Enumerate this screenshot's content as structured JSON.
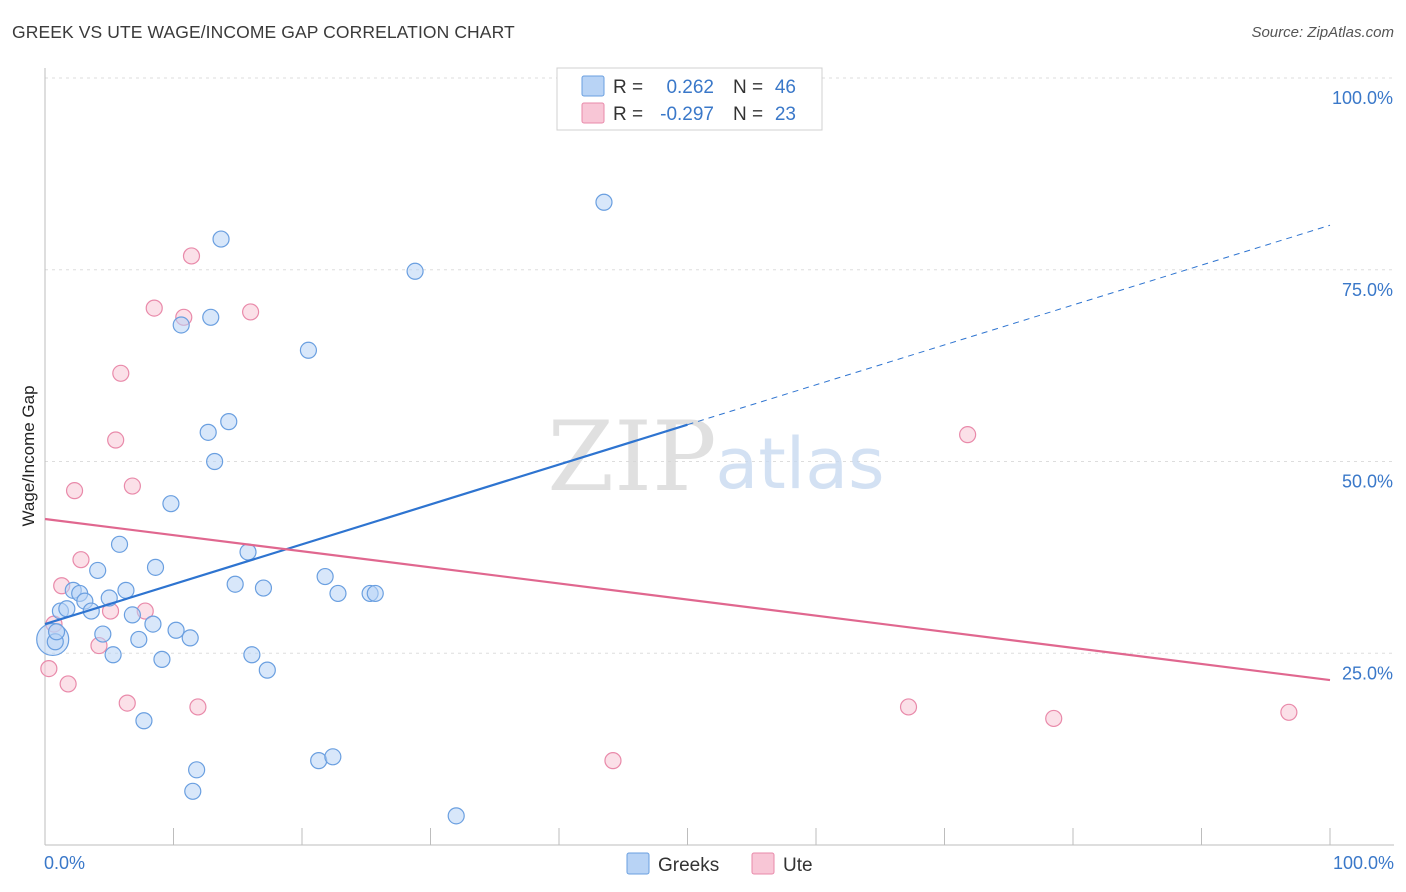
{
  "title": "GREEK VS UTE WAGE/INCOME GAP CORRELATION CHART",
  "source": "Source: ZipAtlas.com",
  "watermark": {
    "zip": "ZIP",
    "atlas": "atlas"
  },
  "colors": {
    "greeks_fill": "#b8d3f5",
    "greeks_stroke": "#6a9fe0",
    "greeks_line": "#2e74d0",
    "ute_fill": "#f8c6d6",
    "ute_stroke": "#e98aaa",
    "ute_line": "#e0678f",
    "grid": "#dddddd",
    "axis_text": "#3a78c9"
  },
  "stats_box": {
    "rows": [
      {
        "r_label": "R =",
        "r_value": "0.262",
        "n_label": "N =",
        "n_value": "46"
      },
      {
        "r_label": "R =",
        "r_value": "-0.297",
        "n_label": "N =",
        "n_value": "23"
      }
    ]
  },
  "legend": {
    "greeks": "Greeks",
    "ute": "Ute"
  },
  "chart_data": {
    "type": "scatter",
    "title": "GREEK VS UTE WAGE/INCOME GAP CORRELATION CHART",
    "xlabel": "",
    "ylabel": "Wage/Income Gap",
    "xlim": [
      0,
      100
    ],
    "ylim": [
      0,
      100
    ],
    "x_tick_labels": [
      "0.0%",
      "100.0%"
    ],
    "y_tick_labels": [
      {
        "value": 25,
        "label": "25.0%"
      },
      {
        "value": 50,
        "label": "50.0%"
      },
      {
        "value": 75,
        "label": "75.0%"
      },
      {
        "value": 100,
        "label": "100.0%"
      }
    ],
    "grid": true,
    "legend_position": "bottom",
    "series": [
      {
        "name": "Greeks",
        "r": 0.262,
        "n": 46,
        "trend": {
          "x0": 0,
          "y0": 28.8,
          "x1": 50,
          "y1": 54.8,
          "dashed_to_x": 100,
          "dashed_to_y": 80.8
        },
        "points": [
          [
            0.8,
            26.5
          ],
          [
            0.9,
            27.8
          ],
          [
            1.2,
            30.5
          ],
          [
            1.7,
            30.8
          ],
          [
            2.2,
            33.2
          ],
          [
            2.7,
            32.8
          ],
          [
            3.1,
            31.8
          ],
          [
            3.6,
            30.5
          ],
          [
            4.1,
            35.8
          ],
          [
            4.5,
            27.5
          ],
          [
            5.0,
            32.2
          ],
          [
            5.3,
            24.8
          ],
          [
            5.8,
            39.2
          ],
          [
            6.3,
            33.2
          ],
          [
            6.8,
            30.0
          ],
          [
            7.3,
            26.8
          ],
          [
            7.7,
            16.2
          ],
          [
            8.4,
            28.8
          ],
          [
            8.6,
            36.2
          ],
          [
            9.1,
            24.2
          ],
          [
            9.8,
            44.5
          ],
          [
            10.2,
            28.0
          ],
          [
            10.6,
            67.8
          ],
          [
            11.3,
            27.0
          ],
          [
            11.8,
            9.8
          ],
          [
            11.5,
            7.0
          ],
          [
            12.7,
            53.8
          ],
          [
            12.9,
            68.8
          ],
          [
            13.2,
            50.0
          ],
          [
            13.7,
            79.0
          ],
          [
            14.3,
            55.2
          ],
          [
            14.8,
            34.0
          ],
          [
            15.8,
            38.2
          ],
          [
            16.1,
            24.8
          ],
          [
            17.0,
            33.5
          ],
          [
            17.3,
            22.8
          ],
          [
            20.5,
            64.5
          ],
          [
            21.3,
            11.0
          ],
          [
            21.8,
            35.0
          ],
          [
            22.4,
            11.5
          ],
          [
            22.8,
            32.8
          ],
          [
            25.3,
            32.8
          ],
          [
            25.7,
            32.8
          ],
          [
            28.8,
            74.8
          ],
          [
            32.0,
            3.8
          ],
          [
            43.5,
            83.8
          ]
        ]
      },
      {
        "name": "Ute",
        "r": -0.297,
        "n": 23,
        "trend": {
          "x0": 0,
          "y0": 42.5,
          "x1": 100,
          "y1": 21.5
        },
        "points": [
          [
            0.3,
            23.0
          ],
          [
            0.7,
            28.8
          ],
          [
            1.3,
            33.8
          ],
          [
            1.8,
            21.0
          ],
          [
            2.3,
            46.2
          ],
          [
            2.8,
            37.2
          ],
          [
            4.2,
            26.0
          ],
          [
            5.1,
            30.5
          ],
          [
            5.5,
            52.8
          ],
          [
            5.9,
            61.5
          ],
          [
            6.4,
            18.5
          ],
          [
            6.8,
            46.8
          ],
          [
            7.8,
            30.5
          ],
          [
            8.5,
            70.0
          ],
          [
            10.8,
            68.8
          ],
          [
            11.4,
            76.8
          ],
          [
            11.9,
            18.0
          ],
          [
            16.0,
            69.5
          ],
          [
            44.2,
            11.0
          ],
          [
            67.2,
            18.0
          ],
          [
            71.8,
            53.5
          ],
          [
            78.5,
            16.5
          ],
          [
            96.8,
            17.3
          ]
        ]
      }
    ]
  }
}
